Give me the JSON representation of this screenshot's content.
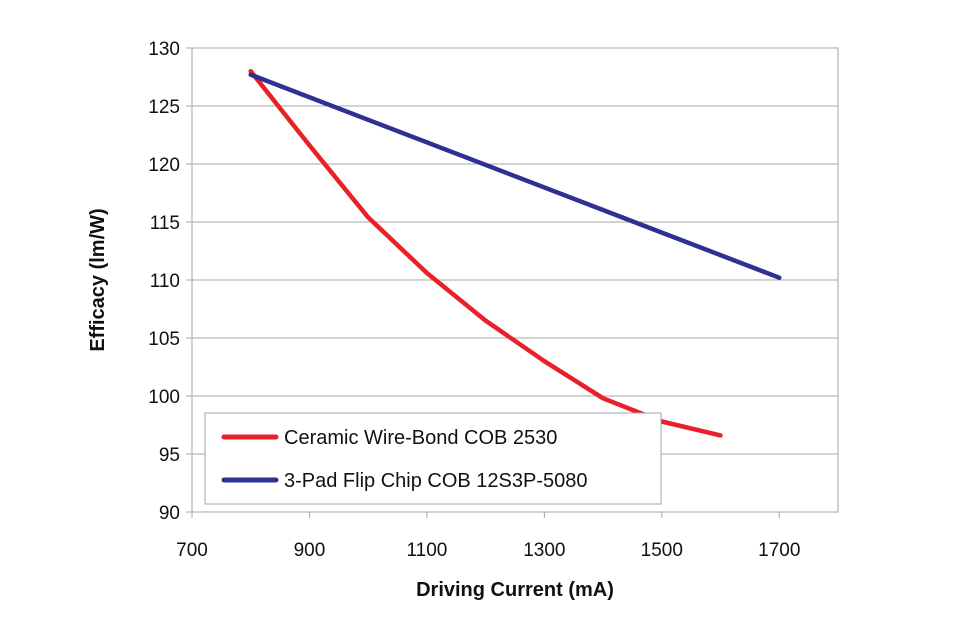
{
  "chart_data": {
    "type": "line",
    "title": "",
    "xlabel": "Driving Current (mA)",
    "ylabel": "Efficacy (lm/W)",
    "xlim": [
      700,
      1800
    ],
    "ylim": [
      90,
      130
    ],
    "xticks": [
      700,
      900,
      1100,
      1300,
      1500,
      1700
    ],
    "yticks": [
      90,
      95,
      100,
      105,
      110,
      115,
      120,
      125,
      130
    ],
    "grid": "horizontal",
    "legend_position": "bottom-left",
    "series": [
      {
        "name": "Ceramic Wire-Bond COB 2530",
        "color": "#e8202a",
        "x": [
          800,
          900,
          1000,
          1100,
          1200,
          1300,
          1400,
          1500,
          1600
        ],
        "y": [
          128,
          121.6,
          115.4,
          110.6,
          106.5,
          103,
          99.8,
          97.8,
          96.6
        ]
      },
      {
        "name": "3-Pad Flip Chip COB 12S3P-5080",
        "color": "#2e3192",
        "x": [
          800,
          1700
        ],
        "y": [
          127.7,
          110.2
        ]
      }
    ]
  }
}
